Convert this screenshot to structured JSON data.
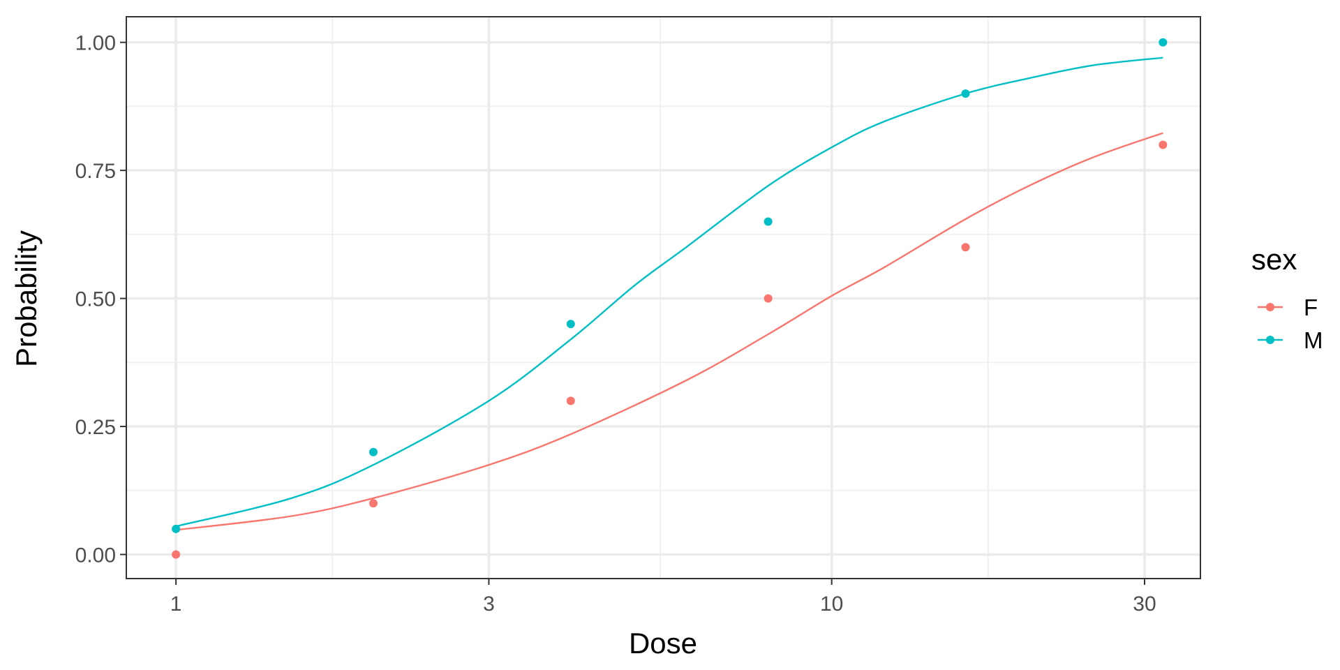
{
  "chart_data": {
    "type": "line",
    "title": "",
    "xlabel": "Dose",
    "ylabel": "Probability",
    "x_scale": "log10",
    "xlim": [
      0.84,
      36.5
    ],
    "ylim": [
      -0.047,
      1.05
    ],
    "x_ticks": [
      1,
      3,
      10,
      30
    ],
    "x_tick_labels": [
      "1",
      "3",
      "10",
      "30"
    ],
    "x_minor_ticks": [
      1.7321,
      5.4772,
      17.3205
    ],
    "y_ticks": [
      0,
      0.25,
      0.5,
      0.75,
      1
    ],
    "y_tick_labels": [
      "0.00",
      "0.25",
      "0.50",
      "0.75",
      "1.00"
    ],
    "y_minor_ticks": [
      0.125,
      0.375,
      0.625,
      0.875
    ],
    "grid": true,
    "legend": {
      "title": "sex",
      "position": "right"
    },
    "series": [
      {
        "name": "F",
        "color": "#F8766D",
        "points": {
          "x": [
            1,
            2,
            4,
            8,
            16,
            32
          ],
          "y": [
            0,
            0.1,
            0.3,
            0.5,
            0.6,
            0.8
          ]
        },
        "fit": {
          "x": [
            1,
            1.5,
            2,
            3,
            4,
            6,
            8,
            10,
            12,
            16,
            20,
            25,
            32
          ],
          "y": [
            0.048,
            0.075,
            0.11,
            0.175,
            0.235,
            0.34,
            0.43,
            0.505,
            0.56,
            0.655,
            0.72,
            0.775,
            0.823
          ]
        }
      },
      {
        "name": "M",
        "color": "#00BFC4",
        "points": {
          "x": [
            1,
            2,
            4,
            8,
            16,
            32
          ],
          "y": [
            0.05,
            0.2,
            0.45,
            0.65,
            0.9,
            1
          ]
        },
        "fit": {
          "x": [
            1,
            1.5,
            2,
            3,
            4,
            5,
            6,
            8,
            10,
            12,
            16,
            20,
            25,
            32
          ],
          "y": [
            0.055,
            0.11,
            0.175,
            0.3,
            0.42,
            0.525,
            0.6,
            0.72,
            0.795,
            0.845,
            0.9,
            0.93,
            0.955,
            0.97
          ]
        }
      }
    ]
  }
}
